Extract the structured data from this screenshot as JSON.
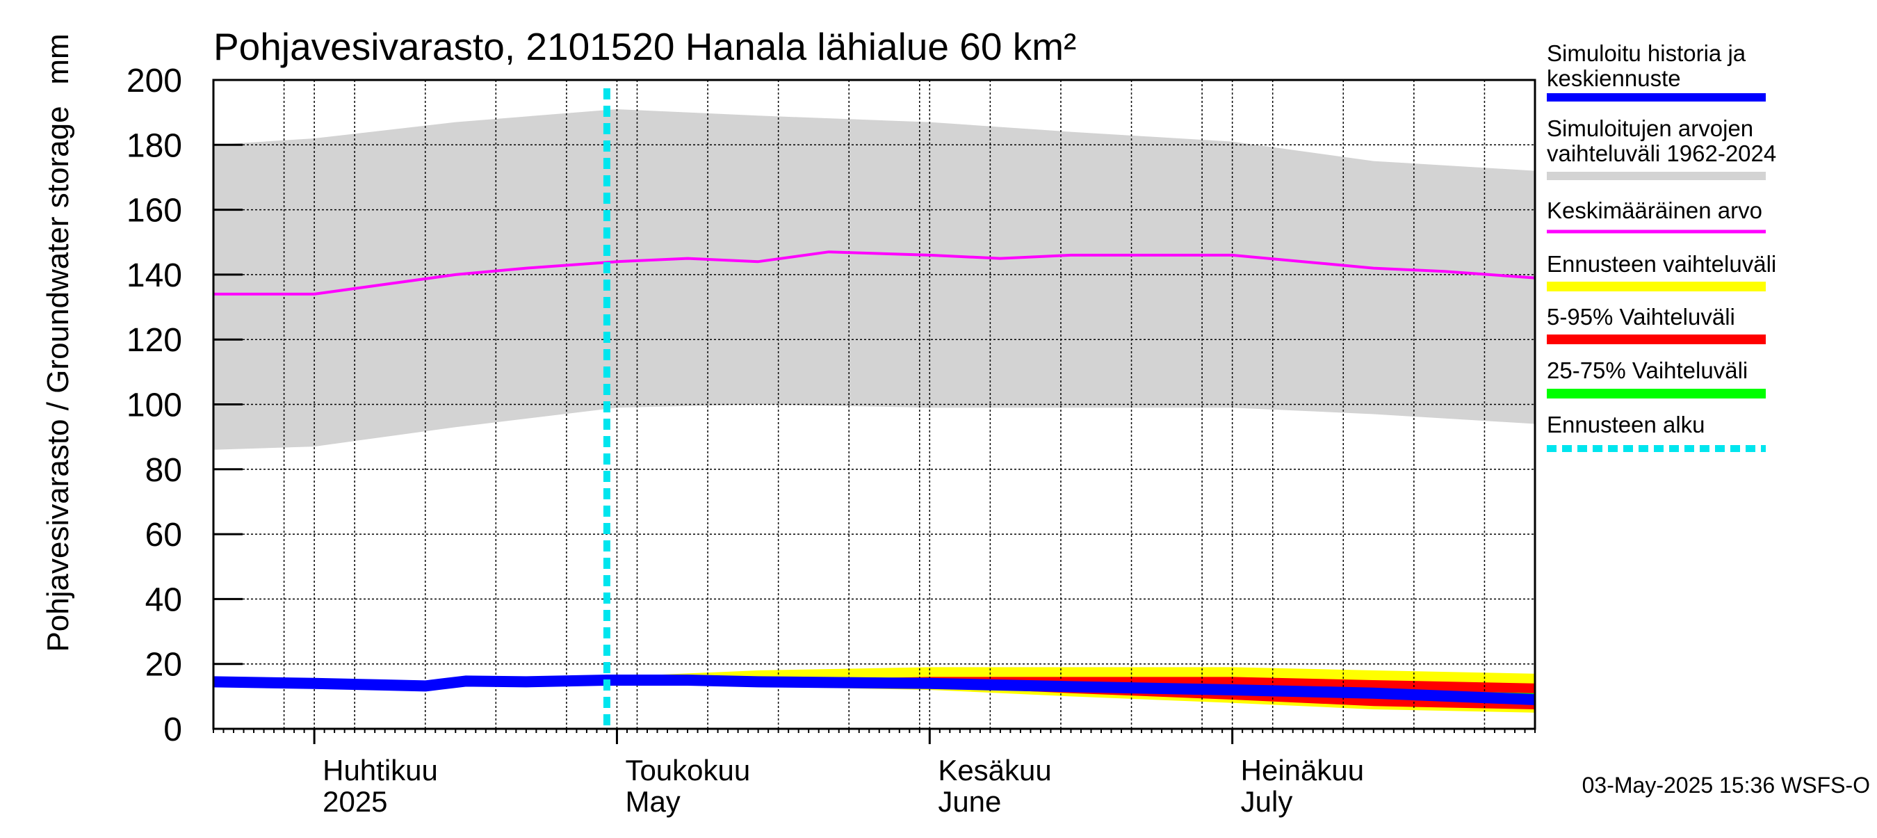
{
  "chart_data": {
    "type": "area",
    "title": "Pohjavesivarasto, 2101520 Hanala lähialue 60 km²",
    "ylabel": "Pohjavesivarasto / Groundwater storage",
    "yunit": "mm",
    "ylim": [
      0,
      200
    ],
    "yticks": [
      0,
      20,
      40,
      60,
      80,
      100,
      120,
      140,
      160,
      180,
      200
    ],
    "xlim": [
      "2025-03-22",
      "2025-07-31"
    ],
    "month_labels": [
      {
        "fi": "Huhtikuu",
        "en": "2025",
        "date": "2025-04-01"
      },
      {
        "fi": "Toukokuu",
        "en": "May",
        "date": "2025-05-01"
      },
      {
        "fi": "Kesäkuu",
        "en": "June",
        "date": "2025-06-01"
      },
      {
        "fi": "Heinäkuu",
        "en": "July",
        "date": "2025-07-01"
      }
    ],
    "forecast_start": "2025-04-30",
    "footer": "03-May-2025 15:36 WSFS-O",
    "legend": [
      {
        "label": "Simuloitu historia ja keskiennuste",
        "color": "#0000ff"
      },
      {
        "label": "Simuloitujen arvojen vaihteluväli 1962-2024",
        "color": "#d3d3d3"
      },
      {
        "label": "Keskimääräinen arvo",
        "color": "#ff00ff"
      },
      {
        "label": "Ennusteen vaihteluväli",
        "color": "#ffff00"
      },
      {
        "label": "5-95% Vaihteluväli",
        "color": "#ff0000"
      },
      {
        "label": "25-75% Vaihteluväli",
        "color": "#00ff00"
      },
      {
        "label": "Ennusteen alku",
        "color": "#00e5ee"
      }
    ],
    "series": [
      {
        "name": "Simuloitujen arvojen vaihteluväli 1962-2024",
        "kind": "band",
        "x": [
          "2025-03-22",
          "2025-04-01",
          "2025-04-15",
          "2025-05-01",
          "2025-05-15",
          "2025-06-01",
          "2025-06-15",
          "2025-07-01",
          "2025-07-15",
          "2025-07-31"
        ],
        "lower": [
          86,
          87,
          93,
          99,
          100,
          99,
          99,
          99,
          97,
          94
        ],
        "upper": [
          180,
          182,
          187,
          191,
          189,
          187,
          184,
          181,
          175,
          172
        ]
      },
      {
        "name": "Keskimääräinen arvo",
        "kind": "line",
        "x": [
          "2025-03-22",
          "2025-04-01",
          "2025-04-08",
          "2025-04-15",
          "2025-04-22",
          "2025-05-01",
          "2025-05-08",
          "2025-05-15",
          "2025-05-22",
          "2025-06-01",
          "2025-06-08",
          "2025-06-15",
          "2025-06-22",
          "2025-07-01",
          "2025-07-08",
          "2025-07-15",
          "2025-07-22",
          "2025-07-31"
        ],
        "y": [
          134,
          134,
          137,
          140,
          142,
          144,
          145,
          144,
          147,
          146,
          145,
          146,
          146,
          146,
          144,
          142,
          141,
          139
        ]
      },
      {
        "name": "Ennusteen vaihteluväli",
        "kind": "band",
        "x": [
          "2025-04-30",
          "2025-05-15",
          "2025-06-01",
          "2025-06-15",
          "2025-07-01",
          "2025-07-15",
          "2025-07-31"
        ],
        "lower": [
          14,
          13,
          12,
          10,
          8,
          6,
          5
        ],
        "upper": [
          16,
          18,
          19,
          19,
          19,
          18,
          17
        ]
      },
      {
        "name": "5-95% Vaihteluväli",
        "kind": "band",
        "x": [
          "2025-04-30",
          "2025-05-15",
          "2025-06-01",
          "2025-06-15",
          "2025-07-01",
          "2025-07-15",
          "2025-07-31"
        ],
        "lower": [
          15,
          14,
          13,
          11,
          9,
          7,
          6
        ],
        "upper": [
          15,
          15,
          16,
          16,
          16,
          15,
          14
        ]
      },
      {
        "name": "25-75% Vaihteluväli",
        "kind": "band",
        "x": [
          "2025-04-30",
          "2025-05-15",
          "2025-06-01",
          "2025-06-15",
          "2025-07-01",
          "2025-07-15",
          "2025-07-31"
        ],
        "lower": [
          15,
          14.5,
          13.5,
          12.5,
          11,
          10,
          9
        ],
        "upper": [
          15,
          15,
          15,
          14,
          13,
          12,
          11
        ]
      },
      {
        "name": "Simuloitu historia ja keskiennuste",
        "kind": "line",
        "x": [
          "2025-03-22",
          "2025-04-01",
          "2025-04-08",
          "2025-04-12",
          "2025-04-16",
          "2025-04-22",
          "2025-04-30",
          "2025-05-08",
          "2025-05-15",
          "2025-06-01",
          "2025-06-15",
          "2025-07-01",
          "2025-07-15",
          "2025-07-31"
        ],
        "y": [
          14.5,
          14,
          13.5,
          13.2,
          14.7,
          14.5,
          15,
          15,
          14.5,
          14,
          13,
          12,
          11,
          9
        ]
      }
    ]
  }
}
